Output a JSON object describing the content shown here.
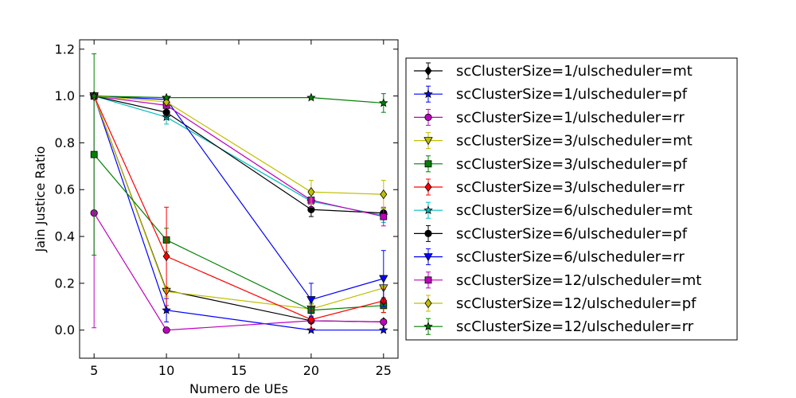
{
  "chart_data": {
    "type": "line",
    "xlabel": "Numero de UEs",
    "ylabel": "Jain Justice Ratio",
    "xlim": [
      4,
      26
    ],
    "ylim": [
      -0.12,
      1.24
    ],
    "x_ticks": [
      5,
      10,
      15,
      20,
      25
    ],
    "y_ticks": [
      0.0,
      0.2,
      0.4,
      0.6,
      0.8,
      1.0,
      1.2
    ],
    "x_tick_labels": [
      "5",
      "10",
      "15",
      "20",
      "25"
    ],
    "y_tick_labels": [
      "0.0",
      "0.2",
      "0.4",
      "0.6",
      "0.8",
      "1.0",
      "1.2"
    ],
    "legend_position": "right, outside plot",
    "grid": false,
    "x": [
      5,
      10,
      20,
      25
    ],
    "series": [
      {
        "name": "scClusterSize=1/ulscheduler=mt",
        "color": "#000000",
        "marker": "diamond",
        "values": [
          1.0,
          0.17,
          0.04,
          0.035
        ],
        "errors": [
          0,
          0,
          0,
          0
        ]
      },
      {
        "name": "scClusterSize=1/ulscheduler=pf",
        "color": "#0000ff",
        "marker": "star",
        "values": [
          1.0,
          0.085,
          0.0,
          0.0
        ],
        "errors": [
          0,
          0.05,
          0,
          0
        ]
      },
      {
        "name": "scClusterSize=1/ulscheduler=rr",
        "color": "#bf00bf",
        "marker": "circle",
        "values": [
          0.5,
          0.0,
          0.04,
          0.035
        ],
        "errors": [
          0.49,
          0,
          0,
          0
        ]
      },
      {
        "name": "scClusterSize=3/ulscheduler=mt",
        "color": "#bfbf00",
        "marker": "triangle-down",
        "values": [
          1.0,
          0.165,
          0.09,
          0.18
        ],
        "errors": [
          0,
          0.02,
          0.02,
          0.04
        ]
      },
      {
        "name": "scClusterSize=3/ulscheduler=pf",
        "color": "#008000",
        "marker": "square",
        "values": [
          0.75,
          0.385,
          0.085,
          0.105
        ],
        "errors": [
          0.43,
          0.05,
          0.03,
          0.03
        ]
      },
      {
        "name": "scClusterSize=3/ulscheduler=rr",
        "color": "#ff0000",
        "marker": "diamond",
        "values": [
          1.0,
          0.315,
          0.045,
          0.125
        ],
        "errors": [
          0,
          0.21,
          0.04,
          0.05
        ]
      },
      {
        "name": "scClusterSize=6/ulscheduler=mt",
        "color": "#00bfbf",
        "marker": "star",
        "values": [
          1.0,
          0.91,
          0.55,
          0.49
        ],
        "errors": [
          0,
          0.03,
          0.03,
          0.03
        ]
      },
      {
        "name": "scClusterSize=6/ulscheduler=pf",
        "color": "#000000",
        "marker": "circle",
        "values": [
          1.0,
          0.93,
          0.515,
          0.5
        ],
        "errors": [
          0,
          0.02,
          0.03,
          0.02
        ]
      },
      {
        "name": "scClusterSize=6/ulscheduler=rr",
        "color": "#0000ff",
        "marker": "triangle-down",
        "values": [
          1.0,
          0.985,
          0.13,
          0.22
        ],
        "errors": [
          0,
          0.01,
          0.07,
          0.12
        ]
      },
      {
        "name": "scClusterSize=12/ulscheduler=mt",
        "color": "#bf00bf",
        "marker": "square",
        "values": [
          1.0,
          0.96,
          0.555,
          0.485
        ],
        "errors": [
          0,
          0.01,
          0.03,
          0.04
        ]
      },
      {
        "name": "scClusterSize=12/ulscheduler=pf",
        "color": "#bfbf00",
        "marker": "diamond",
        "values": [
          1.0,
          0.975,
          0.59,
          0.58
        ],
        "errors": [
          0,
          0.01,
          0.05,
          0.06
        ]
      },
      {
        "name": "scClusterSize=12/ulscheduler=rr",
        "color": "#008000",
        "marker": "star",
        "values": [
          1.0,
          0.993,
          0.993,
          0.97
        ],
        "errors": [
          0,
          0.005,
          0.005,
          0.04
        ]
      }
    ]
  }
}
